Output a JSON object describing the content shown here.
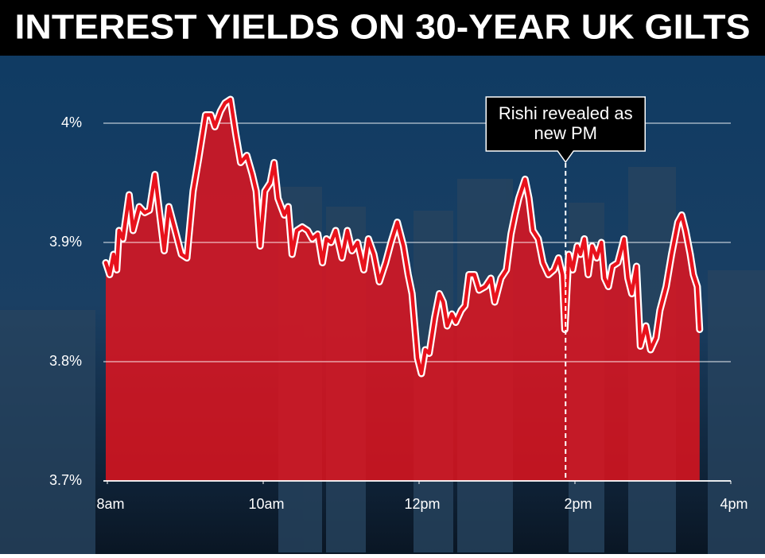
{
  "chart_data": {
    "type": "area",
    "title": "INTEREST YIELDS ON 30-YEAR UK GILTS",
    "x": [
      7.98,
      8.03,
      8.08,
      8.12,
      8.15,
      8.2,
      8.28,
      8.33,
      8.41,
      8.48,
      8.54,
      8.61,
      8.66,
      8.73,
      8.79,
      8.87,
      8.95,
      9.02,
      9.1,
      9.17,
      9.26,
      9.33,
      9.38,
      9.45,
      9.51,
      9.58,
      9.65,
      9.71,
      9.79,
      9.86,
      9.91,
      9.96,
      10.02,
      10.09,
      10.14,
      10.19,
      10.27,
      10.32,
      10.37,
      10.43,
      10.5,
      10.57,
      10.63,
      10.7,
      10.76,
      10.81,
      10.87,
      10.93,
      11.01,
      11.08,
      11.14,
      11.21,
      11.29,
      11.35,
      11.42,
      11.49,
      11.57,
      11.64,
      11.72,
      11.8,
      11.86,
      11.91,
      11.98,
      12.03,
      12.08,
      12.13,
      12.2,
      12.26,
      12.31,
      12.36,
      12.42,
      12.47,
      12.54,
      12.59,
      12.64,
      12.71,
      12.77,
      12.85,
      12.92,
      12.97,
      13.05,
      13.12,
      13.18,
      13.23,
      13.28,
      13.36,
      13.41,
      13.46,
      13.53,
      13.59,
      13.66,
      13.73,
      13.79,
      13.84,
      13.87,
      13.92,
      13.97,
      14.03,
      14.07,
      14.12,
      14.17,
      14.22,
      14.28,
      14.34,
      14.38,
      14.43,
      14.48,
      14.55,
      14.63,
      14.68,
      14.73,
      14.79,
      14.84,
      14.91,
      14.97,
      15.04,
      15.09,
      15.17,
      15.24,
      15.32,
      15.37,
      15.42,
      15.48,
      15.52,
      15.57,
      15.6
    ],
    "values": [
      3.883,
      3.873,
      3.89,
      3.877,
      3.91,
      3.903,
      3.94,
      3.91,
      3.93,
      3.925,
      3.927,
      3.957,
      3.93,
      3.893,
      3.93,
      3.91,
      3.89,
      3.887,
      3.943,
      3.97,
      4.007,
      4.007,
      3.997,
      4.01,
      4.017,
      4.02,
      3.99,
      3.967,
      3.973,
      3.957,
      3.943,
      3.897,
      3.943,
      3.95,
      3.967,
      3.937,
      3.923,
      3.93,
      3.89,
      3.91,
      3.913,
      3.91,
      3.903,
      3.907,
      3.883,
      3.903,
      3.9,
      3.91,
      3.887,
      3.91,
      3.893,
      3.9,
      3.877,
      3.903,
      3.89,
      3.867,
      3.883,
      3.9,
      3.917,
      3.897,
      3.873,
      3.857,
      3.803,
      3.79,
      3.81,
      3.807,
      3.837,
      3.857,
      3.85,
      3.83,
      3.84,
      3.833,
      3.843,
      3.847,
      3.873,
      3.873,
      3.86,
      3.863,
      3.87,
      3.85,
      3.87,
      3.877,
      3.907,
      3.923,
      3.937,
      3.953,
      3.937,
      3.91,
      3.903,
      3.883,
      3.873,
      3.877,
      3.887,
      3.873,
      3.827,
      3.89,
      3.877,
      3.897,
      3.89,
      3.903,
      3.873,
      3.897,
      3.887,
      3.9,
      3.87,
      3.863,
      3.88,
      3.883,
      3.903,
      3.87,
      3.857,
      3.88,
      3.813,
      3.83,
      3.81,
      3.82,
      3.843,
      3.863,
      3.89,
      3.917,
      3.923,
      3.91,
      3.89,
      3.873,
      3.863,
      3.827
    ],
    "color": "#e8121c",
    "xlim": [
      7.95,
      16.05
    ],
    "xticks": [
      {
        "value": 8,
        "label": "8am"
      },
      {
        "value": 10,
        "label": "10am"
      },
      {
        "value": 12,
        "label": "12pm"
      },
      {
        "value": 14,
        "label": "2pm"
      },
      {
        "value": 16,
        "label": "4pm"
      }
    ],
    "ylim": [
      3.7,
      4.05
    ],
    "yticks": [
      {
        "value": 3.7,
        "label": "3.7%"
      },
      {
        "value": 3.8,
        "label": "3.8%"
      },
      {
        "value": 3.9,
        "label": "3.9%"
      },
      {
        "value": 4,
        "label": "4%"
      }
    ],
    "grid": true,
    "annotation": {
      "lines": [
        "Rishi revealed as",
        "new PM"
      ],
      "x": 13.88
    }
  }
}
